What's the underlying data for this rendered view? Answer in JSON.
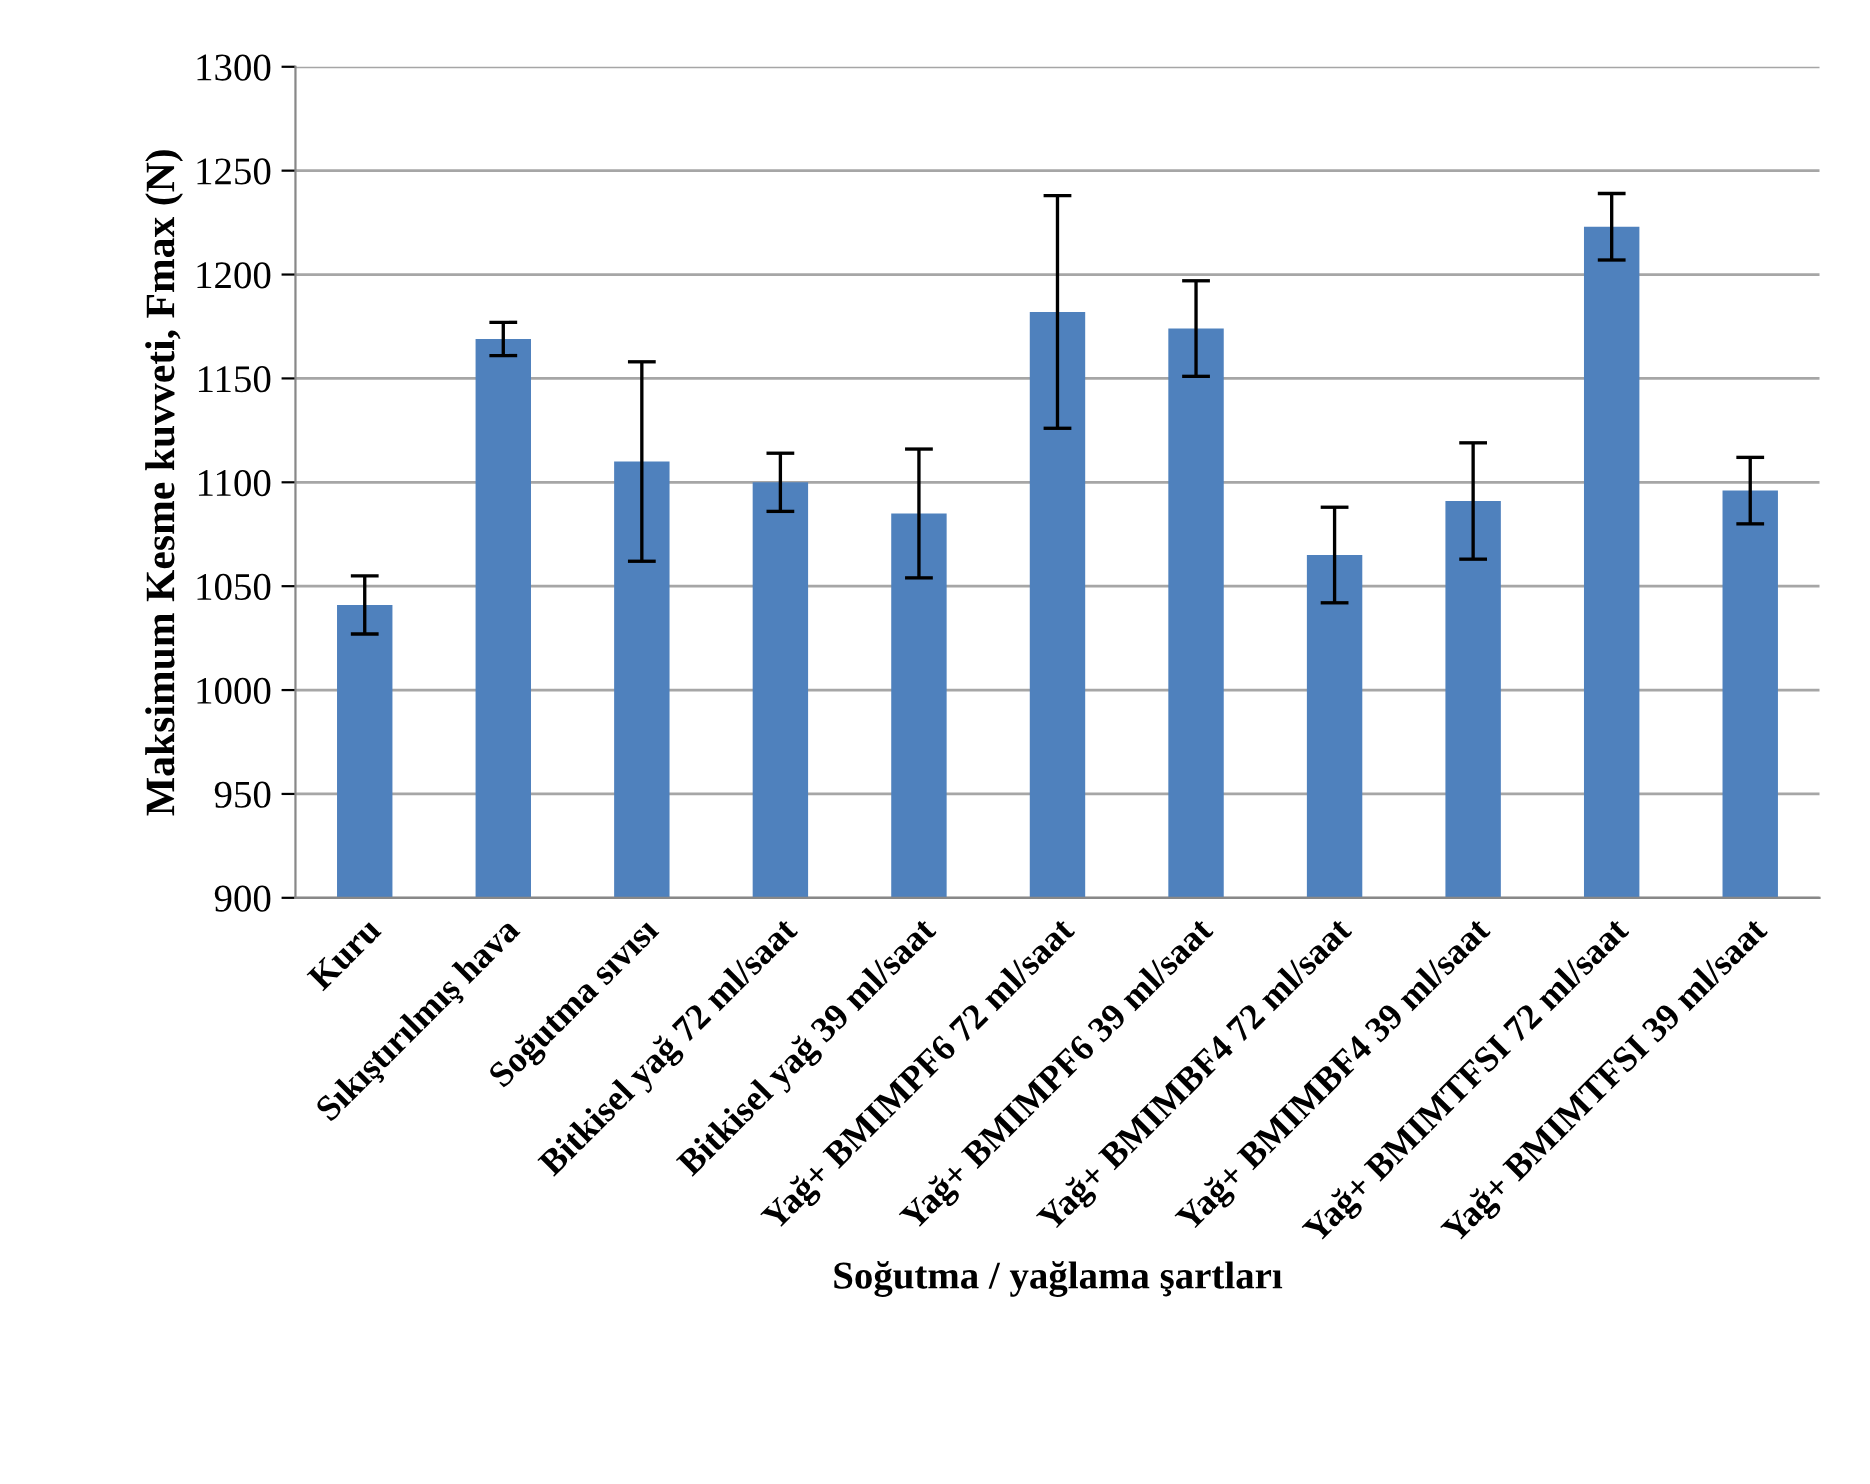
{
  "chart_data": {
    "type": "bar",
    "xlabel": "Soğutma / yağlama şartları",
    "ylabel": "Maksimum Kesme kuvveti, Fmax (N)",
    "categories": [
      "Kuru",
      "Sıkıştırılmış hava",
      "Soğutma sıvısı",
      "Bitkisel yağ 72 ml/saat",
      "Bitkisel yağ 39 ml/saat",
      "Yağ+ BMIMPF6 72 ml/saat",
      "Yağ+ BMIMPF6 39 ml/saat",
      "Yağ+ BMIMBF4 72 ml/saat",
      "Yağ+ BMIMBF4 39 ml/saat",
      "Yağ+ BMIMTFSI 72 ml/saat",
      "Yağ+ BMIMTFSI 39 ml/saat"
    ],
    "values": [
      1041,
      1169,
      1110,
      1100,
      1085,
      1182,
      1174,
      1065,
      1091,
      1223,
      1096
    ],
    "errors": [
      14,
      8,
      48,
      14,
      31,
      56,
      23,
      23,
      28,
      16,
      16
    ],
    "color": "#4f81bd",
    "ylim": [
      900,
      1300
    ],
    "yticks": [
      900,
      950,
      1000,
      1050,
      1100,
      1150,
      1200,
      1250,
      1300
    ],
    "grid": "y",
    "legend": false
  }
}
